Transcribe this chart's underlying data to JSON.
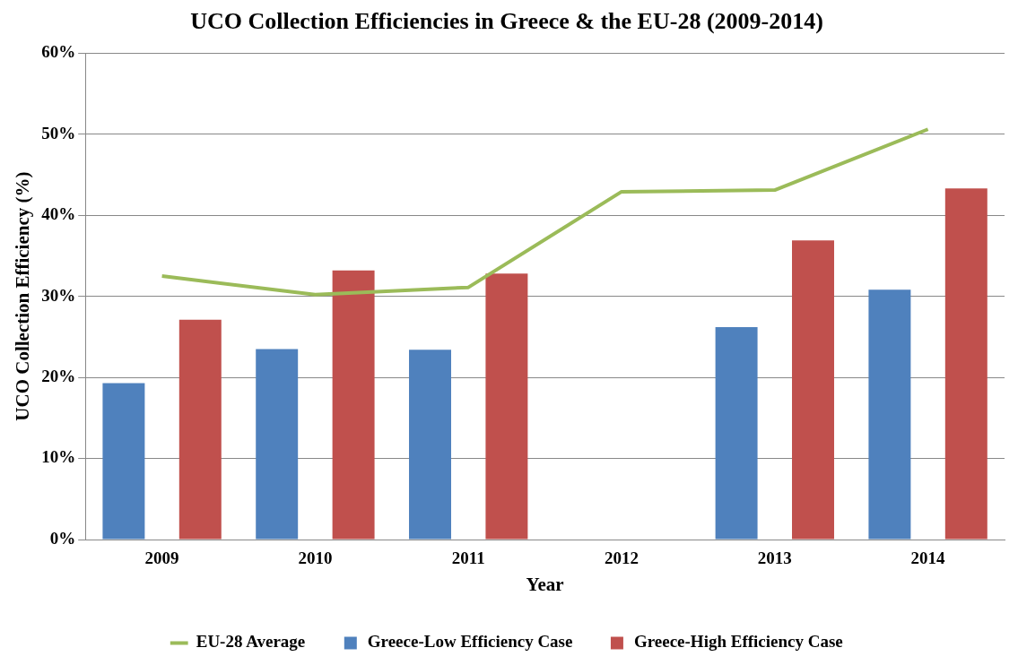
{
  "chart_data": {
    "type": "bar",
    "title": "UCO Collection Efficiencies in Greece & the EU-28 (2009-2014)",
    "xlabel": "Year",
    "ylabel": "UCO Collection Efficiency (%)",
    "categories": [
      "2009",
      "2010",
      "2011",
      "2012",
      "2013",
      "2014"
    ],
    "series": [
      {
        "name": "Greece-Low Efficiency Case",
        "color": "#4f81bd",
        "values": [
          19.3,
          23.5,
          23.4,
          null,
          26.2,
          30.8
        ]
      },
      {
        "name": "Greece-High Efficiency Case",
        "color": "#c0504d",
        "values": [
          27.1,
          33.2,
          32.8,
          null,
          36.9,
          43.3
        ]
      },
      {
        "name": "EU-28 Average",
        "type": "line",
        "color": "#9bbb59",
        "marker": "none",
        "values": [
          32.5,
          30.2,
          31.1,
          42.9,
          43.1,
          50.6
        ]
      }
    ],
    "ylim": [
      0,
      60
    ],
    "yticks": [
      {
        "value": 0,
        "label": "0%"
      },
      {
        "value": 10,
        "label": "10%"
      },
      {
        "value": 20,
        "label": "20%"
      },
      {
        "value": 30,
        "label": "30%"
      },
      {
        "value": 40,
        "label": "40%"
      },
      {
        "value": 50,
        "label": "50%"
      },
      {
        "value": 60,
        "label": "60%"
      }
    ],
    "grid": "y",
    "legend": "bottom"
  }
}
